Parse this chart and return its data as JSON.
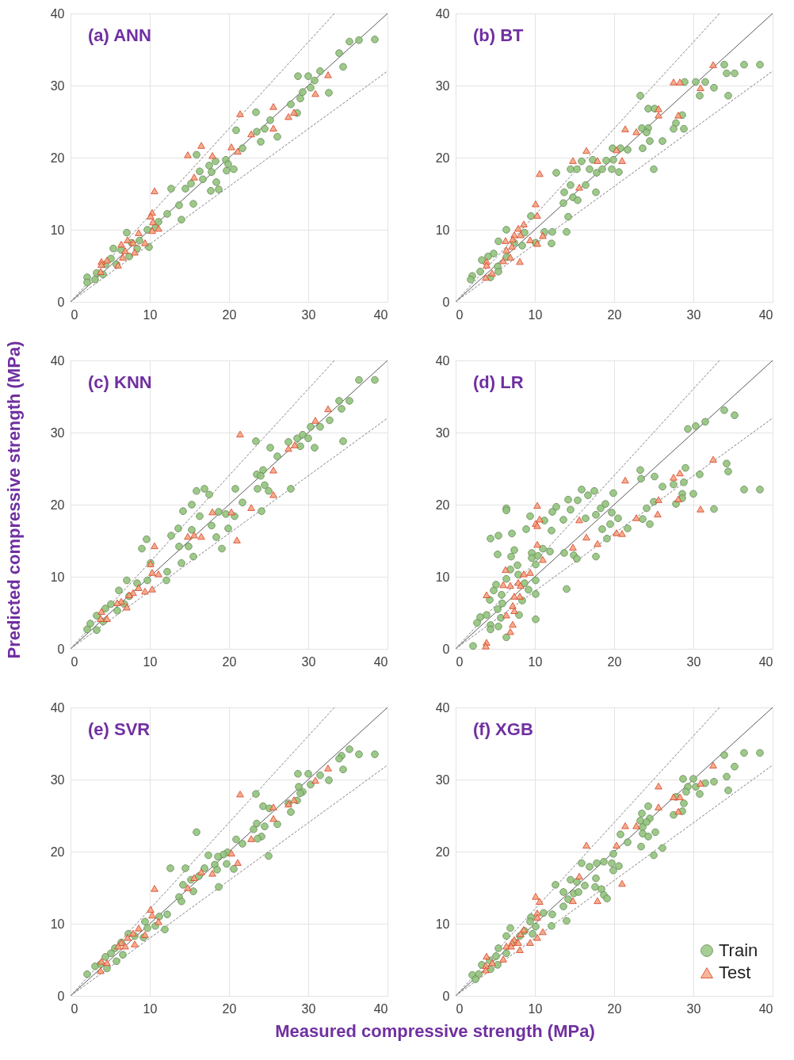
{
  "chart_data": [
    {
      "type": "scatter",
      "title": "(a) ANN",
      "ylabel": "Predicted compressive strength (MPa)",
      "xlim": [
        0,
        40
      ],
      "ylim": [
        0,
        40
      ],
      "xticks": [
        0,
        10,
        20,
        30,
        40
      ],
      "yticks": [
        0,
        10,
        20,
        30,
        40
      ],
      "grid": true,
      "series": [
        {
          "type": "line",
          "color": "#595959",
          "line_style": "solid",
          "marker": "none",
          "x": [
            0,
            40
          ],
          "values": [
            0,
            40
          ]
        },
        {
          "type": "line",
          "color": "#808080",
          "line_style": "dashed",
          "marker": "none",
          "x": [
            0,
            33.3
          ],
          "values": [
            0,
            40
          ]
        },
        {
          "type": "line",
          "color": "#808080",
          "line_style": "dashed",
          "marker": "none",
          "x": [
            0,
            40
          ],
          "values": [
            0,
            32
          ]
        },
        {
          "type": "scatter",
          "color": "#93c47d",
          "marker": "circle",
          "x": [
            38.4,
            36.4,
            35.2,
            33.9,
            34.4,
            32.6,
            31.5,
            30.0,
            28.7,
            30.8,
            30.3,
            29.3,
            29.0,
            27.8,
            28.6,
            25.2,
            23.4,
            24.5,
            23.5,
            26.1,
            24.0,
            20.9,
            21.7,
            19.6,
            18.3,
            19.9,
            20.6,
            19.7,
            17.5,
            17.8,
            16.3,
            15.9,
            16.7,
            18.4,
            18.7,
            17.7,
            15.2,
            14.5,
            12.7,
            13.7,
            15.5,
            14.0,
            12.2,
            11.1,
            9.7,
            7.1,
            9.9,
            8.7,
            7.7,
            6.4,
            5.4,
            5.1,
            4.4,
            3.3,
            2.1,
            2.1,
            3.1,
            4.1,
            5.8,
            7.4,
            8.4,
            10.7
          ],
          "values": [
            36.4,
            36.3,
            36.1,
            34.5,
            32.6,
            29.0,
            32.0,
            31.3,
            31.3,
            30.7,
            29.7,
            29.1,
            28.2,
            27.4,
            26.2,
            25.2,
            26.3,
            24.0,
            23.6,
            22.9,
            22.2,
            23.8,
            21.3,
            19.7,
            19.5,
            19.1,
            18.4,
            18.2,
            18.9,
            18.0,
            18.1,
            20.4,
            17.0,
            16.6,
            15.6,
            15.4,
            16.4,
            15.7,
            15.7,
            13.4,
            13.6,
            11.4,
            12.2,
            11.1,
            10.0,
            9.6,
            7.6,
            8.5,
            8.2,
            7.2,
            7.4,
            6.0,
            5.2,
            4.0,
            3.4,
            2.7,
            3.1,
            3.8,
            5.2,
            6.3,
            7.4,
            10.3
          ]
        },
        {
          "type": "scatter",
          "color": "#f4a582",
          "marker": "triangle",
          "x": [
            32.5,
            30.9,
            25.6,
            21.4,
            27.5,
            28.2,
            25.6,
            22.8,
            20.3,
            21.1,
            16.5,
            14.8,
            17.9,
            15.6,
            10.6,
            10.3,
            10.1,
            10.4,
            11.1,
            10.3,
            8.6,
            9.4,
            7.9,
            7.2,
            6.4,
            6.9,
            6.6,
            8.1,
            4.6,
            3.9,
            3.9,
            6.0,
            3.8
          ],
          "values": [
            31.5,
            28.9,
            27.1,
            26.1,
            25.7,
            26.3,
            24.1,
            23.3,
            21.5,
            20.9,
            21.7,
            20.4,
            20.3,
            17.3,
            15.4,
            12.4,
            11.9,
            11.1,
            10.2,
            9.9,
            9.6,
            8.2,
            8.2,
            8.6,
            8.0,
            7.1,
            6.2,
            6.9,
            5.8,
            5.6,
            5.2,
            5.1,
            4.2
          ]
        }
      ]
    },
    {
      "type": "scatter",
      "title": "(b) BT",
      "xlim": [
        0,
        40
      ],
      "ylim": [
        0,
        40
      ],
      "xticks": [
        0,
        10,
        20,
        30,
        40
      ],
      "yticks": [
        0,
        10,
        20,
        30,
        40
      ],
      "grid": true,
      "series": [
        {
          "type": "line",
          "color": "#595959",
          "line_style": "solid",
          "marker": "none",
          "x": [
            0,
            40
          ],
          "values": [
            0,
            40
          ]
        },
        {
          "type": "line",
          "color": "#808080",
          "line_style": "dashed",
          "marker": "none",
          "x": [
            0,
            33.3
          ],
          "values": [
            0,
            40
          ]
        },
        {
          "type": "line",
          "color": "#808080",
          "line_style": "dashed",
          "marker": "none",
          "x": [
            0,
            40
          ],
          "values": [
            0,
            32
          ]
        },
        {
          "type": "scatter",
          "color": "#93c47d",
          "marker": "circle",
          "x": [
            38.4,
            36.4,
            33.9,
            34.2,
            35.2,
            34.4,
            32.6,
            30.8,
            31.5,
            30.3,
            28.9,
            23.3,
            24.3,
            25.1,
            28.6,
            27.8,
            27.5,
            28.8,
            23.5,
            24.3,
            24.1,
            24.5,
            26.1,
            23.6,
            25.0,
            19.8,
            20.8,
            21.7,
            19.0,
            19.9,
            17.3,
            15.9,
            14.5,
            15.3,
            16.9,
            17.8,
            18.5,
            19.7,
            20.6,
            12.7,
            14.5,
            16.4,
            17.7,
            13.7,
            14.8,
            15.4,
            13.6,
            14.2,
            14.0,
            12.2,
            11.2,
            9.5,
            6.4,
            8.7,
            12.1,
            10.1,
            7.4,
            5.4,
            8.4,
            4.8,
            6.4,
            4.1,
            3.3,
            5.3,
            3.1,
            2.1,
            1.9,
            4.4,
            5.4
          ],
          "values": [
            32.9,
            32.9,
            32.9,
            31.7,
            31.7,
            28.6,
            29.7,
            28.6,
            30.5,
            30.5,
            30.5,
            28.6,
            26.8,
            26.8,
            25.9,
            24.8,
            24.0,
            24.0,
            24.1,
            24.1,
            23.5,
            22.3,
            22.3,
            21.3,
            18.4,
            21.3,
            21.3,
            21.1,
            19.6,
            19.7,
            19.7,
            19.5,
            18.4,
            18.4,
            18.4,
            17.9,
            18.4,
            18.4,
            18.0,
            17.9,
            16.2,
            16.2,
            15.2,
            15.2,
            14.5,
            14.1,
            13.7,
            11.8,
            9.7,
            9.7,
            9.7,
            11.9,
            10.0,
            9.6,
            8.1,
            8.2,
            8.2,
            8.4,
            7.8,
            6.7,
            6.2,
            6.3,
            5.8,
            4.9,
            4.2,
            3.6,
            3.1,
            3.4,
            4.2
          ]
        },
        {
          "type": "scatter",
          "color": "#f4a582",
          "marker": "triangle",
          "x": [
            32.5,
            27.5,
            28.3,
            30.9,
            25.6,
            25.6,
            28.1,
            21.4,
            22.8,
            20.3,
            21.0,
            17.9,
            14.8,
            16.5,
            15.6,
            10.6,
            10.1,
            10.3,
            8.6,
            7.9,
            8.2,
            7.4,
            11.0,
            9.4,
            6.3,
            7.2,
            10.3,
            7.1,
            6.4,
            6.9,
            8.1,
            6.0,
            3.9,
            3.9,
            4.6,
            3.8
          ],
          "values": [
            32.9,
            30.5,
            30.5,
            29.7,
            26.8,
            25.9,
            25.9,
            24.0,
            23.6,
            21.1,
            19.6,
            19.6,
            19.6,
            21.0,
            15.9,
            17.8,
            13.6,
            12.0,
            10.8,
            10.2,
            9.3,
            9.3,
            9.2,
            8.6,
            8.5,
            8.7,
            8.1,
            7.7,
            7.2,
            6.2,
            5.6,
            5.7,
            5.6,
            5.1,
            4.0,
            3.4
          ]
        }
      ]
    },
    {
      "type": "scatter",
      "title": "(c) KNN",
      "xlim": [
        0,
        40
      ],
      "ylim": [
        0,
        40
      ],
      "xticks": [
        0,
        10,
        20,
        30,
        40
      ],
      "yticks": [
        0,
        10,
        20,
        30,
        40
      ],
      "grid": true,
      "series": [
        {
          "type": "line",
          "color": "#595959",
          "line_style": "solid",
          "marker": "none",
          "x": [
            0,
            40
          ],
          "values": [
            0,
            40
          ]
        },
        {
          "type": "line",
          "color": "#808080",
          "line_style": "dashed",
          "marker": "none",
          "x": [
            0,
            33.3
          ],
          "values": [
            0,
            40
          ]
        },
        {
          "type": "line",
          "color": "#808080",
          "line_style": "dashed",
          "marker": "none",
          "x": [
            0,
            40
          ],
          "values": [
            0,
            32
          ]
        },
        {
          "type": "scatter",
          "color": "#93c47d",
          "marker": "circle",
          "x": [
            38.4,
            36.4,
            35.2,
            33.9,
            34.2,
            34.4,
            32.7,
            31.5,
            30.3,
            30.0,
            29.3,
            28.6,
            29.0,
            27.5,
            30.8,
            23.4,
            25.2,
            26.1,
            24.3,
            23.5,
            24.0,
            24.5,
            23.6,
            25.0,
            27.8,
            20.8,
            21.7,
            24.1,
            15.9,
            16.9,
            17.5,
            15.3,
            14.2,
            16.3,
            18.7,
            19.6,
            20.7,
            17.8,
            19.9,
            18.4,
            19.1,
            15.3,
            12.7,
            13.6,
            14.9,
            13.7,
            15.5,
            14.0,
            9.6,
            9.0,
            10.1,
            12.2,
            12.1,
            7.1,
            9.7,
            6.1,
            8.4,
            5.1,
            5.9,
            4.4,
            3.3,
            2.5,
            2.1,
            3.3,
            4.1,
            7.4,
            6.8
          ],
          "values": [
            37.3,
            37.3,
            34.4,
            34.4,
            33.3,
            28.8,
            31.7,
            30.8,
            30.8,
            29.2,
            29.7,
            29.2,
            28.1,
            28.7,
            27.9,
            28.8,
            27.9,
            26.7,
            24.8,
            24.2,
            24.0,
            22.7,
            22.2,
            21.9,
            22.2,
            22.2,
            20.3,
            19.1,
            21.9,
            22.2,
            21.4,
            20.0,
            19.1,
            18.4,
            19.0,
            18.7,
            18.4,
            17.1,
            16.7,
            15.5,
            13.9,
            16.5,
            15.7,
            16.7,
            14.2,
            14.2,
            12.8,
            11.9,
            15.2,
            13.9,
            11.9,
            10.7,
            9.5,
            9.5,
            9.5,
            8.1,
            9.1,
            6.2,
            5.3,
            5.6,
            4.6,
            3.5,
            2.7,
            2.6,
            3.8,
            7.3,
            6.2
          ]
        },
        {
          "type": "scatter",
          "color": "#f4a582",
          "marker": "triangle",
          "x": [
            32.5,
            30.9,
            21.4,
            27.5,
            28.3,
            25.6,
            25.6,
            22.8,
            21.0,
            17.9,
            20.3,
            14.8,
            15.6,
            16.5,
            10.6,
            10.1,
            10.3,
            11.1,
            10.3,
            8.6,
            9.4,
            7.9,
            7.4,
            6.4,
            5.9,
            7.1,
            3.9,
            4.6,
            3.8
          ],
          "values": [
            33.3,
            31.7,
            29.8,
            27.8,
            28.3,
            24.8,
            21.4,
            19.6,
            15.1,
            19.0,
            19.0,
            15.6,
            15.8,
            15.6,
            14.3,
            11.8,
            10.6,
            10.4,
            8.3,
            8.5,
            8.0,
            7.8,
            7.5,
            6.6,
            6.4,
            5.8,
            5.2,
            4.2,
            4.2
          ]
        }
      ]
    },
    {
      "type": "scatter",
      "title": "(d) LR",
      "xlim": [
        0,
        40
      ],
      "ylim": [
        0,
        40
      ],
      "xticks": [
        0,
        10,
        20,
        30,
        40
      ],
      "yticks": [
        0,
        10,
        20,
        30,
        40
      ],
      "grid": true,
      "series": [
        {
          "type": "line",
          "color": "#595959",
          "line_style": "solid",
          "marker": "none",
          "x": [
            0,
            40
          ],
          "values": [
            0,
            40
          ]
        },
        {
          "type": "line",
          "color": "#808080",
          "line_style": "dashed",
          "marker": "none",
          "x": [
            0,
            33.3
          ],
          "values": [
            0,
            40
          ]
        },
        {
          "type": "line",
          "color": "#808080",
          "line_style": "dashed",
          "marker": "none",
          "x": [
            0,
            40
          ],
          "values": [
            0,
            32
          ]
        },
        {
          "type": "scatter",
          "color": "#93c47d",
          "marker": "circle",
          "x": [
            38.4,
            36.4,
            33.9,
            35.2,
            31.5,
            30.3,
            29.3,
            34.2,
            34.4,
            32.6,
            30.8,
            30.0,
            29.0,
            28.8,
            27.5,
            28.6,
            28.6,
            27.8,
            26.1,
            25.1,
            23.3,
            23.4,
            25.0,
            24.1,
            23.6,
            24.5,
            21.7,
            19.9,
            18.9,
            19.7,
            20.5,
            19.5,
            18.5,
            17.7,
            18.3,
            19.1,
            17.7,
            15.9,
            17.5,
            16.7,
            14.2,
            15.4,
            14.5,
            12.7,
            12.2,
            13.6,
            16.4,
            11.2,
            9.4,
            12.1,
            8.9,
            6.4,
            6.4,
            7.1,
            4.4,
            5.4,
            5.3,
            7.0,
            7.4,
            13.7,
            14.9,
            15.3,
            11.9,
            11.0,
            9.6,
            10.4,
            9.6,
            7.8,
            10.1,
            6.9,
            7.9,
            10.1,
            5.1,
            6.4,
            8.7,
            9.2,
            14.0,
            10.1,
            4.8,
            5.8,
            4.3,
            5.9,
            8.4,
            5.3,
            3.9,
            3.1,
            8.0,
            5.7,
            10.1,
            2.7,
            4.4,
            4.4,
            5.4,
            6.4,
            2.2
          ],
          "values": [
            22.1,
            22.1,
            33.1,
            32.4,
            31.5,
            30.9,
            30.5,
            25.7,
            24.6,
            19.4,
            24.2,
            21.5,
            25.1,
            23.1,
            22.8,
            21.5,
            20.9,
            20.1,
            22.5,
            23.9,
            24.8,
            23.6,
            20.4,
            19.5,
            18.0,
            17.3,
            16.7,
            21.6,
            20.1,
            18.9,
            18.1,
            17.3,
            16.6,
            18.6,
            19.5,
            15.3,
            12.8,
            22.1,
            21.9,
            21.3,
            20.7,
            20.6,
            19.3,
            19.7,
            19.0,
            17.9,
            18.1,
            17.8,
            18.4,
            16.4,
            16.6,
            19.5,
            19.2,
            16.0,
            15.3,
            15.7,
            13.1,
            12.8,
            13.7,
            13.3,
            13.0,
            12.5,
            13.5,
            13.9,
            13.3,
            12.9,
            12.6,
            11.6,
            11.7,
            11.0,
            10.3,
            9.5,
            8.9,
            9.7,
            9.1,
            8.2,
            8.3,
            7.6,
            8.1,
            7.5,
            6.8,
            6.3,
            6.7,
            5.5,
            4.7,
            4.4,
            4.7,
            4.3,
            4.1,
            3.6,
            3.3,
            2.7,
            3.1,
            1.6,
            0.4
          ]
        },
        {
          "type": "scatter",
          "color": "#f4a582",
          "marker": "triangle",
          "x": [
            32.5,
            28.3,
            27.5,
            21.4,
            28.1,
            25.6,
            30.9,
            25.5,
            22.8,
            20.3,
            21.0,
            15.6,
            10.3,
            10.6,
            10.1,
            10.3,
            16.5,
            17.9,
            14.8,
            10.3,
            11.0,
            6.3,
            8.6,
            9.4,
            7.9,
            8.2,
            6.0,
            6.9,
            3.9,
            7.4,
            8.1,
            7.2,
            7.4,
            6.4,
            7.2,
            6.9,
            3.9,
            3.8
          ],
          "values": [
            26.3,
            24.4,
            23.8,
            23.4,
            20.8,
            20.7,
            19.4,
            18.7,
            18.2,
            16.1,
            16.0,
            17.9,
            19.9,
            18.0,
            17.4,
            17.1,
            15.5,
            14.6,
            14.1,
            14.5,
            12.4,
            11.0,
            10.4,
            10.6,
            9.2,
            8.8,
            8.9,
            8.8,
            7.5,
            7.3,
            7.3,
            6.0,
            5.3,
            4.7,
            3.4,
            2.4,
            0.9,
            0.4
          ]
        }
      ]
    },
    {
      "type": "scatter",
      "title": "(e) SVR",
      "xlabel": "Measured compressive strength (MPa)",
      "xlim": [
        0,
        40
      ],
      "ylim": [
        0,
        40
      ],
      "xticks": [
        0,
        10,
        20,
        30,
        40
      ],
      "yticks": [
        0,
        10,
        20,
        30,
        40
      ],
      "grid": true,
      "series": [
        {
          "type": "line",
          "color": "#595959",
          "line_style": "solid",
          "marker": "none",
          "x": [
            0,
            40
          ],
          "values": [
            0,
            40
          ]
        },
        {
          "type": "line",
          "color": "#808080",
          "line_style": "dashed",
          "marker": "none",
          "x": [
            0,
            33.3
          ],
          "values": [
            0,
            40
          ]
        },
        {
          "type": "line",
          "color": "#808080",
          "line_style": "dashed",
          "marker": "none",
          "x": [
            0,
            40
          ],
          "values": [
            0,
            32
          ]
        },
        {
          "type": "scatter",
          "color": "#93c47d",
          "marker": "circle",
          "x": [
            38.4,
            36.4,
            35.2,
            34.2,
            33.9,
            34.4,
            32.6,
            31.5,
            30.0,
            28.7,
            30.3,
            28.8,
            29.3,
            29.0,
            28.6,
            27.5,
            27.8,
            23.4,
            24.3,
            25.1,
            26.1,
            24.5,
            23.5,
            23.1,
            24.1,
            23.6,
            25.0,
            20.9,
            21.7,
            19.8,
            19.3,
            18.6,
            17.4,
            18.2,
            19.7,
            20.6,
            18.5,
            16.9,
            15.9,
            14.5,
            12.6,
            16.2,
            15.2,
            14.2,
            15.5,
            13.7,
            14.0,
            18.7,
            12.2,
            11.9,
            11.2,
            9.4,
            9.7,
            10.7,
            9.2,
            7.3,
            8.1,
            6.4,
            5.6,
            6.6,
            5.1,
            5.8,
            4.4,
            3.1,
            2.1,
            4.6,
            3.8
          ],
          "values": [
            33.5,
            33.5,
            34.2,
            33.3,
            32.9,
            31.4,
            29.9,
            30.6,
            30.8,
            30.8,
            29.3,
            29.0,
            28.3,
            28.1,
            27.1,
            26.7,
            25.5,
            28.0,
            26.3,
            26.0,
            23.8,
            23.5,
            23.9,
            23.1,
            22.1,
            21.8,
            19.4,
            21.7,
            21.1,
            19.9,
            19.6,
            19.3,
            19.5,
            18.2,
            18.3,
            17.6,
            17.5,
            17.7,
            22.7,
            17.7,
            17.7,
            16.6,
            16.1,
            15.4,
            14.5,
            13.7,
            13.1,
            15.1,
            11.3,
            9.2,
            11.0,
            10.3,
            9.4,
            9.7,
            8.1,
            8.6,
            8.3,
            7.4,
            6.6,
            5.7,
            5.9,
            4.8,
            5.4,
            4.1,
            3.0,
            3.8,
            4.4
          ]
        },
        {
          "type": "scatter",
          "color": "#f4a582",
          "marker": "triangle",
          "x": [
            32.5,
            30.9,
            21.4,
            25.6,
            27.5,
            28.2,
            25.6,
            22.8,
            20.3,
            21.1,
            16.5,
            15.6,
            17.9,
            14.8,
            10.6,
            10.1,
            10.3,
            11.1,
            8.6,
            7.9,
            9.4,
            7.2,
            6.4,
            6.9,
            8.1,
            6.0,
            3.9,
            4.6,
            3.8
          ],
          "values": [
            31.6,
            29.9,
            28.0,
            26.2,
            26.6,
            27.2,
            24.6,
            21.8,
            19.8,
            18.5,
            17.2,
            16.4,
            17.0,
            15.0,
            14.9,
            12.0,
            11.2,
            10.3,
            9.4,
            8.7,
            8.5,
            8.1,
            7.4,
            6.9,
            7.2,
            6.9,
            4.8,
            4.6,
            3.5
          ]
        }
      ]
    },
    {
      "type": "scatter",
      "title": "(f) XGB",
      "xlim": [
        0,
        40
      ],
      "ylim": [
        0,
        40
      ],
      "xticks": [
        0,
        10,
        20,
        30,
        40
      ],
      "yticks": [
        0,
        10,
        20,
        30,
        40
      ],
      "grid": true,
      "legend": "bottom right",
      "series": [
        {
          "type": "line",
          "color": "#595959",
          "line_style": "solid",
          "marker": "none",
          "x": [
            0,
            40
          ],
          "values": [
            0,
            40
          ]
        },
        {
          "type": "line",
          "color": "#808080",
          "line_style": "dashed",
          "marker": "none",
          "x": [
            0,
            33.3
          ],
          "values": [
            0,
            40
          ]
        },
        {
          "type": "line",
          "color": "#808080",
          "line_style": "dashed",
          "marker": "none",
          "x": [
            0,
            40
          ],
          "values": [
            0,
            32
          ]
        },
        {
          "type": "scatter",
          "name": "Train",
          "color": "#93c47d",
          "marker": "circle",
          "x": [
            38.4,
            36.4,
            33.9,
            35.2,
            34.2,
            34.4,
            32.6,
            31.5,
            30.8,
            30.3,
            30.0,
            28.7,
            29.3,
            29.1,
            28.8,
            28.6,
            27.5,
            27.8,
            24.3,
            23.5,
            24.5,
            23.3,
            24.1,
            23.6,
            25.2,
            23.6,
            24.3,
            23.4,
            26.1,
            25.0,
            20.8,
            21.7,
            19.9,
            18.7,
            17.8,
            19.7,
            20.6,
            19.9,
            16.9,
            15.9,
            17.7,
            16.3,
            14.5,
            15.3,
            17.6,
            18.4,
            18.7,
            19.1,
            12.6,
            13.6,
            14.9,
            15.5,
            14.2,
            13.6,
            12.2,
            14.0,
            12.1,
            11.1,
            9.5,
            9.4,
            10.1,
            6.9,
            6.4,
            8.7,
            9.7,
            8.1,
            7.4,
            5.4,
            6.4,
            5.1,
            4.3,
            3.3,
            5.3,
            4.4,
            2.1,
            2.9,
            2.5
          ],
          "values": [
            33.7,
            33.7,
            33.4,
            31.8,
            30.4,
            28.5,
            29.7,
            29.5,
            28.0,
            29.0,
            30.1,
            30.1,
            29.0,
            28.3,
            26.7,
            25.6,
            25.1,
            27.6,
            26.3,
            25.3,
            24.6,
            24.3,
            24.1,
            23.4,
            22.7,
            22.5,
            22.1,
            20.7,
            20.5,
            19.5,
            22.4,
            21.3,
            19.7,
            18.6,
            18.4,
            18.4,
            18.0,
            17.4,
            17.9,
            18.4,
            16.3,
            15.3,
            16.1,
            15.8,
            15.1,
            14.8,
            14.0,
            13.5,
            15.4,
            14.4,
            14.2,
            14.4,
            13.4,
            12.4,
            11.3,
            10.4,
            9.7,
            11.5,
            10.9,
            10.3,
            9.6,
            9.4,
            8.3,
            9.0,
            8.6,
            8.3,
            7.4,
            6.6,
            5.9,
            5.5,
            4.9,
            4.3,
            4.3,
            3.7,
            2.9,
            3.0,
            2.3
          ]
        },
        {
          "type": "scatter",
          "name": "Test",
          "color": "#f4a582",
          "marker": "triangle",
          "x": [
            32.5,
            30.9,
            25.6,
            27.5,
            28.3,
            25.6,
            28.1,
            21.4,
            22.8,
            20.3,
            16.5,
            21.0,
            17.9,
            15.6,
            14.8,
            10.1,
            10.6,
            10.3,
            10.3,
            11.0,
            8.6,
            10.3,
            8.2,
            9.4,
            7.4,
            7.1,
            7.9,
            6.4,
            7.0,
            8.1,
            3.9,
            6.0,
            4.6,
            3.8,
            3.8
          ],
          "values": [
            32.0,
            29.5,
            29.1,
            27.6,
            27.6,
            26.2,
            25.6,
            23.6,
            23.6,
            20.9,
            20.9,
            15.6,
            13.2,
            16.6,
            13.2,
            13.8,
            13.1,
            11.5,
            10.9,
            8.9,
            9.2,
            8.1,
            8.6,
            7.4,
            7.8,
            7.4,
            7.4,
            6.9,
            6.9,
            6.4,
            5.5,
            5.1,
            4.6,
            4.2,
            3.6
          ]
        }
      ]
    }
  ]
}
